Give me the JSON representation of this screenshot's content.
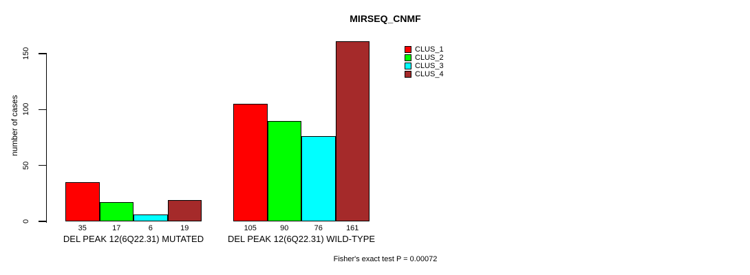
{
  "chart_data": {
    "type": "bar",
    "title": "MIRSEQ_CNMF",
    "ylabel": "number of cases",
    "xlabel": "",
    "ylim": [
      0,
      150
    ],
    "yticks": [
      0,
      50,
      100,
      150
    ],
    "grid": false,
    "legend_position": "top-right",
    "bar_value_labels": true,
    "categories": [
      "DEL PEAK 12(6Q22.31) MUTATED",
      "DEL PEAK 12(6Q22.31) WILD-TYPE"
    ],
    "series": [
      {
        "name": "CLUS_1",
        "color": "#ff0000",
        "values": [
          35,
          105
        ]
      },
      {
        "name": "CLUS_2",
        "color": "#00ff00",
        "values": [
          17,
          90
        ]
      },
      {
        "name": "CLUS_3",
        "color": "#00ffff",
        "values": [
          6,
          76
        ]
      },
      {
        "name": "CLUS_4",
        "color": "#a52a2a",
        "values": [
          19,
          161
        ]
      }
    ],
    "annotation": "Fisher's exact test P = 0.00072"
  }
}
